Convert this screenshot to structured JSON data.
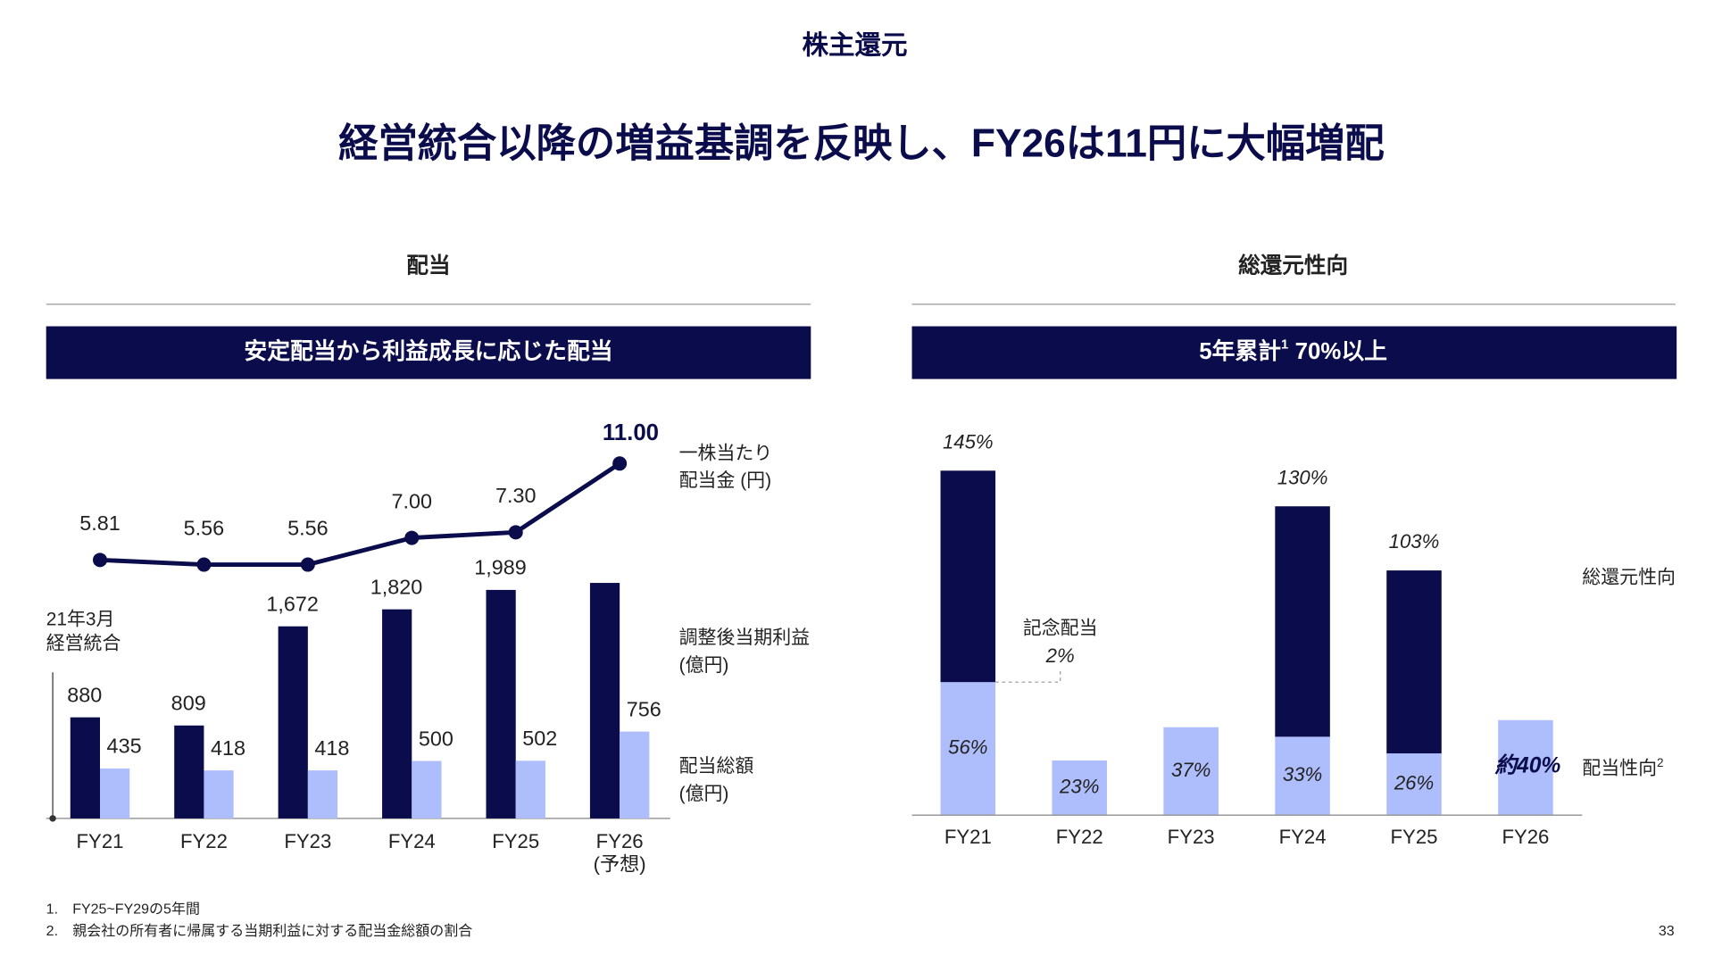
{
  "header": {
    "section": "株主還元",
    "title": "経営統合以降の増益基調を反映し、FY26は11円に大幅増配"
  },
  "panels": [
    {
      "heading": "配当",
      "banner": "安定配当から利益成長に応じた配当"
    },
    {
      "heading": "総還元性向",
      "banner_before": "5年累計",
      "banner_ref": "1",
      "banner_after": "70%以上"
    }
  ],
  "chart_data": [
    {
      "type": "bar_line",
      "categories": [
        "FY21",
        "FY22",
        "FY23",
        "FY24",
        "FY25",
        "FY26"
      ],
      "forecast_note": "(予想)",
      "annotation": "21年3月\n経営統合",
      "ylim": [
        0,
        2400
      ],
      "y2lim": [
        0,
        12
      ],
      "series": [
        {
          "name": "調整後当期利益\n(億円)",
          "color": "#0b0c4b",
          "values": [
            880,
            809,
            1672,
            1820,
            1989,
            2050
          ],
          "value_labels": [
            "880",
            "809",
            "1,672",
            "1,820",
            "1,989",
            null
          ]
        },
        {
          "name": "配当総額\n(億円)",
          "color": "#aebdfb",
          "values": [
            435,
            418,
            418,
            500,
            502,
            756
          ]
        },
        {
          "name": "一株当たり\n配当金 (円)",
          "color": "#0b0c4b",
          "type": "line",
          "axis": "y2",
          "values": [
            5.81,
            5.56,
            5.56,
            7.0,
            7.3,
            11.0
          ],
          "value_labels": [
            "5.81",
            "5.56",
            "5.56",
            "7.00",
            "7.30",
            "11.00"
          ]
        }
      ]
    },
    {
      "type": "stacked_bar",
      "categories": [
        "FY21",
        "FY22",
        "FY23",
        "FY24",
        "FY25",
        "FY26"
      ],
      "ylim": [
        0,
        160
      ],
      "series": [
        {
          "name": "配当性向",
          "name_ref": "2",
          "color": "#aebdfb",
          "values": [
            56,
            23,
            37,
            33,
            26,
            40
          ],
          "value_labels": [
            "56%",
            "23%",
            "37%",
            "33%",
            "26%",
            "約40%"
          ]
        },
        {
          "name": "総還元性向",
          "color": "#0b0c4b",
          "values": [
            89,
            null,
            null,
            97,
            77,
            null
          ]
        }
      ],
      "totals": [
        145,
        null,
        null,
        130,
        103,
        null
      ],
      "total_labels": [
        "145%",
        null,
        null,
        "130%",
        "103%",
        null
      ],
      "annotation": {
        "text": "記念配当",
        "value": 2,
        "label": "2%"
      }
    }
  ],
  "footnotes": [
    {
      "mark": "1.",
      "text": "FY25~FY29の5年間"
    },
    {
      "mark": "2.",
      "text": "親会社の所有者に帰属する当期利益に対する配当金総額の割合"
    }
  ],
  "page_number": "33"
}
